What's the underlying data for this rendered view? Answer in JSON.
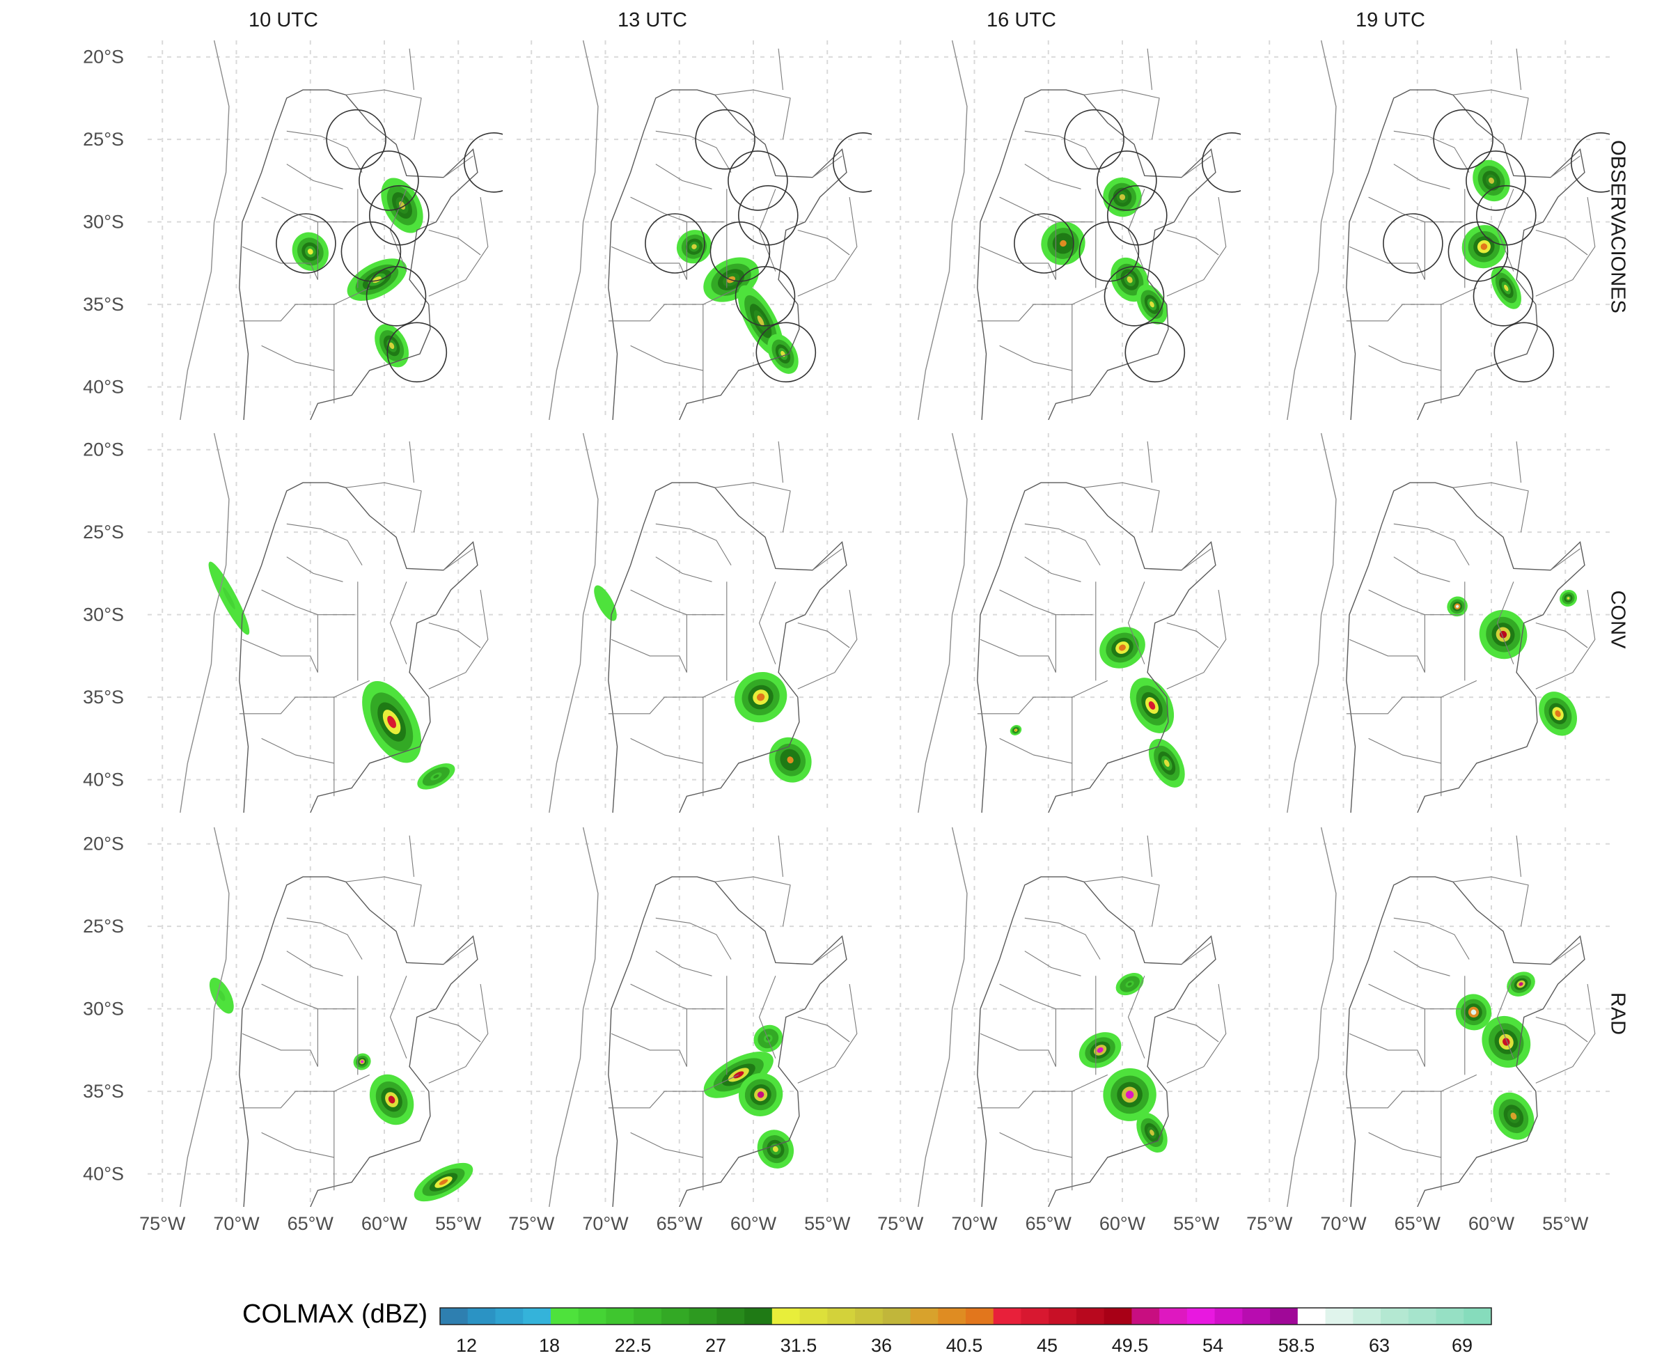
{
  "columns": [
    "10 UTC",
    "13 UTC",
    "16 UTC",
    "19 UTC"
  ],
  "rows": [
    "OBSERVACIONES",
    "CONV",
    "RAD"
  ],
  "lat_ticks": [
    "20°S",
    "25°S",
    "30°S",
    "35°S",
    "40°S"
  ],
  "lon_ticks": [
    "75°W",
    "70°W",
    "65°W",
    "60°W",
    "55°W"
  ],
  "extent": {
    "lon_min": -76,
    "lon_max": -52,
    "lat_min": -42,
    "lat_max": -19
  },
  "colorbar": {
    "label": "COLMAX (dBZ)",
    "ticks": [
      "12",
      "18",
      "22.5",
      "27",
      "31.5",
      "36",
      "40.5",
      "45",
      "49.5",
      "54",
      "58.5",
      "63",
      "69"
    ],
    "colors": [
      "#2e7fb0",
      "#2b93c4",
      "#2fa3d0",
      "#34b3da",
      "#4ee23c",
      "#45d435",
      "#3fc62f",
      "#39b82a",
      "#33a925",
      "#2d9a20",
      "#278a1b",
      "#1f7a15",
      "#e8ee3a",
      "#dde03a",
      "#d3d23a",
      "#cac43a",
      "#c1b63a",
      "#d8a22c",
      "#df8c22",
      "#e2761c",
      "#e8203a",
      "#d81830",
      "#c81026",
      "#b8081e",
      "#a80016",
      "#c80e80",
      "#de18c0",
      "#e818e0",
      "#d010c8",
      "#b80cb0",
      "#a00898",
      "#ffffff",
      "#e0f4ec",
      "#c8eede",
      "#b4e8d2",
      "#a6e4cc",
      "#96e0c4",
      "#86dcbc"
    ]
  },
  "radars": [
    [
      -61.9,
      -25.0
    ],
    [
      -59.7,
      -27.5
    ],
    [
      -59.0,
      -29.6
    ],
    [
      -65.3,
      -31.3
    ],
    [
      -60.9,
      -31.8
    ],
    [
      -59.2,
      -34.5
    ],
    [
      -57.8,
      -37.9
    ],
    [
      -52.6,
      -26.4
    ]
  ],
  "echoes": {
    "obs": [
      [
        [
          -60.5,
          -33.5,
          2.2,
          1.0,
          30
        ],
        [
          -58.8,
          -29.0,
          1.2,
          1.8,
          34
        ],
        [
          -59.5,
          -37.5,
          1.0,
          1.4,
          32
        ],
        [
          -65.0,
          -31.8,
          1.2,
          1.2,
          28
        ]
      ],
      [
        [
          -61.5,
          -33.5,
          2.0,
          1.2,
          36
        ],
        [
          -59.5,
          -36.0,
          1.0,
          2.4,
          34
        ],
        [
          -64.0,
          -31.5,
          1.2,
          1.0,
          32
        ],
        [
          -58.0,
          -38.0,
          0.9,
          1.3,
          30
        ]
      ],
      [
        [
          -64.0,
          -31.3,
          1.5,
          1.3,
          38
        ],
        [
          -60.0,
          -28.5,
          1.3,
          1.2,
          34
        ],
        [
          -59.5,
          -33.5,
          1.2,
          1.4,
          32
        ],
        [
          -58.0,
          -35.0,
          0.9,
          1.3,
          30
        ]
      ],
      [
        [
          -60.5,
          -31.5,
          1.5,
          1.3,
          40
        ],
        [
          -60.0,
          -27.5,
          1.2,
          1.3,
          34
        ],
        [
          -59.0,
          -34.0,
          0.8,
          1.4,
          30
        ]
      ]
    ],
    "conv": [
      [
        [
          -59.5,
          -36.5,
          1.6,
          2.7,
          42
        ],
        [
          -56.5,
          -39.8,
          1.4,
          0.6,
          24
        ],
        [
          -70.5,
          -29.0,
          0.5,
          2.5,
          18
        ]
      ],
      [
        [
          -59.5,
          -35.0,
          1.8,
          1.5,
          40
        ],
        [
          -57.5,
          -38.8,
          1.4,
          1.4,
          38
        ],
        [
          -70.0,
          -29.3,
          0.5,
          1.2,
          16
        ]
      ],
      [
        [
          -60.0,
          -32.0,
          1.6,
          1.2,
          40
        ],
        [
          -58.0,
          -35.5,
          1.3,
          1.8,
          42
        ],
        [
          -57.0,
          -39.0,
          1.0,
          1.6,
          30
        ],
        [
          -67.2,
          -37.0,
          0.4,
          0.3,
          40
        ]
      ],
      [
        [
          -62.3,
          -29.5,
          0.7,
          0.6,
          60
        ],
        [
          -59.2,
          -31.2,
          1.6,
          1.5,
          46
        ],
        [
          -55.5,
          -36.0,
          1.2,
          1.4,
          40
        ],
        [
          -54.8,
          -29.0,
          0.6,
          0.5,
          30
        ]
      ]
    ],
    "rad": [
      [
        [
          -61.5,
          -33.2,
          0.6,
          0.5,
          52
        ],
        [
          -59.5,
          -35.5,
          1.4,
          1.6,
          44
        ],
        [
          -56.0,
          -40.5,
          2.2,
          0.8,
          40
        ],
        [
          -71.0,
          -29.2,
          0.6,
          1.2,
          18
        ]
      ],
      [
        [
          -61.0,
          -34.0,
          2.6,
          1.0,
          44
        ],
        [
          -59.5,
          -35.2,
          1.5,
          1.3,
          48
        ],
        [
          -58.5,
          -38.5,
          1.2,
          1.2,
          30
        ],
        [
          -59.0,
          -31.8,
          1.0,
          0.8,
          24
        ]
      ],
      [
        [
          -61.5,
          -32.5,
          1.5,
          1.0,
          50
        ],
        [
          -59.5,
          -35.2,
          1.8,
          1.6,
          50
        ],
        [
          -58.0,
          -37.5,
          0.9,
          1.3,
          34
        ],
        [
          -59.5,
          -28.5,
          1.0,
          0.6,
          24
        ]
      ],
      [
        [
          -61.2,
          -30.2,
          1.2,
          1.1,
          60
        ],
        [
          -59.0,
          -32.0,
          1.6,
          1.6,
          44
        ],
        [
          -58.0,
          -28.5,
          1.0,
          0.7,
          48
        ],
        [
          -58.5,
          -36.5,
          1.3,
          1.5,
          36
        ]
      ]
    ]
  }
}
